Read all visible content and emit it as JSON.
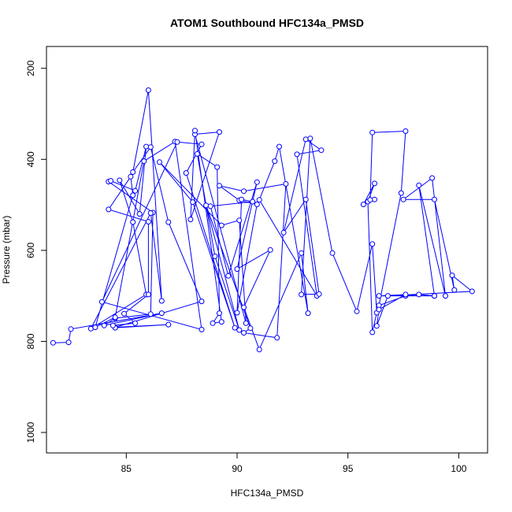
{
  "chart_data": {
    "type": "line",
    "title": "ATOM1 Southbound HFC134a_PMSD",
    "xlabel": "HFC134a_PMSD",
    "ylabel": "Pressure (mbar)",
    "xlim": [
      81.4,
      101.3
    ],
    "ylim": [
      1045,
      152
    ],
    "y_reversed": true,
    "x_ticks": [
      85,
      90,
      95,
      100
    ],
    "y_ticks": [
      200,
      400,
      600,
      800,
      1000
    ],
    "x_tick_labels": [
      "85",
      "90",
      "95",
      "100"
    ],
    "y_tick_labels": [
      "200",
      "400",
      "600",
      "800",
      "1000"
    ],
    "grid": false,
    "legend": "none",
    "series_color": "#0000ff",
    "marker": "open-circle",
    "series": [
      {
        "x": [
          81.7,
          82.4,
          82.5,
          86.6,
          84.0,
          84.5,
          86.1,
          86.2,
          84.2,
          84.3,
          85.4,
          85.9,
          85.6,
          84.7,
          85.3,
          85.9,
          83.4,
          86.1,
          86.6,
          86.0,
          85.3,
          86.1,
          86.9,
          88.4,
          84.5,
          86.9,
          84.5,
          84.4,
          85.4,
          84.9,
          86.0,
          86.0,
          84.2,
          85.2,
          85.3,
          83.6,
          84.5,
          85.8,
          87.2,
          88.4,
          83.9,
          87.3,
          88.4,
          87.7,
          89.9,
          88.0,
          86.5,
          89.3,
          90.1,
          90.4,
          88.1,
          89.2,
          87.9,
          88.1,
          89.3,
          88.9,
          89.2,
          89.1,
          88.2,
          89.0,
          90.1,
          88.6,
          90.6,
          90.3,
          91.8,
          92.2,
          90.3,
          89.2,
          90.1,
          90.9,
          90.0,
          90.2,
          90.7,
          88.8,
          89.6,
          90.9,
          90.0,
          91.5,
          90.3,
          91.0,
          92.9,
          93.2,
          91.9,
          91.7,
          91.0,
          93.6,
          92.7,
          93.8,
          93.1,
          92.1,
          93.1,
          93.7,
          92.9,
          93.3,
          94.3,
          95.4,
          96.1,
          96.3,
          96.1,
          95.9,
          96.2,
          95.7,
          96.2,
          96.0,
          96.1,
          97.6,
          97.4,
          96.4,
          97.6,
          98.2,
          98.9,
          98.2,
          99.4,
          98.8,
          97.5,
          98.9,
          99.8,
          99.7,
          100.6,
          96.8,
          96.3,
          96.4,
          97.6,
          96.4,
          98.9
        ],
        "y": [
          803,
          802,
          773,
          738,
          765,
          749,
          740,
          517,
          449,
          447,
          469,
          372,
          520,
          446,
          538,
          697,
          772,
          518,
          711,
          248,
          428,
          373,
          538,
          712,
          769,
          763,
          770,
          765,
          760,
          739,
          697,
          537,
          510,
          438,
          479,
          769,
          747,
          404,
          361,
          774,
          713,
          362,
          367,
          430,
          770,
          494,
          406,
          545,
          534,
          760,
          345,
          340,
          532,
          337,
          757,
          760,
          738,
          417,
          388,
          613,
          775,
          501,
          771,
          781,
          792,
          454,
          470,
          458,
          490,
          499,
          737,
          488,
          493,
          503,
          656,
          450,
          641,
          599,
          725,
          818,
          606,
          738,
          372,
          404,
          489,
          700,
          389,
          380,
          356,
          561,
          488,
          696,
          697,
          354,
          606,
          734,
          586,
          737,
          780,
          493,
          453,
          499,
          488,
          489,
          341,
          338,
          474,
          721,
          700,
          697,
          700,
          457,
          700,
          441,
          488,
          488,
          687,
          655,
          690,
          700,
          766,
          730,
          697,
          700,
          700
        ]
      }
    ]
  }
}
